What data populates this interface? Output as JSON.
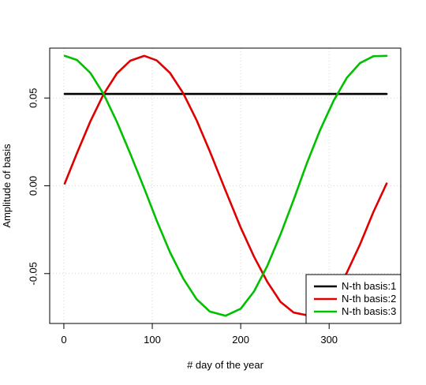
{
  "chart_data": {
    "type": "line",
    "xlabel": "# day of the year",
    "ylabel": "Amplitude of basis",
    "xlim": [
      -16,
      381
    ],
    "ylim": [
      -0.0784,
      0.0784
    ],
    "x_ticks": [
      0,
      100,
      200,
      300
    ],
    "y_ticks": [
      -0.05,
      0.0,
      0.05
    ],
    "x_tick_labels": [
      "0",
      "100",
      "200",
      "300"
    ],
    "y_tick_labels": [
      "-0.05",
      "0.00",
      "0.05"
    ],
    "grid": true,
    "legend_position": "bottom-right",
    "x": [
      1,
      15,
      30,
      45,
      60,
      75,
      91,
      105,
      120,
      135,
      150,
      165,
      183,
      200,
      215,
      230,
      245,
      260,
      275,
      290,
      305,
      320,
      335,
      350,
      365
    ],
    "series": [
      {
        "name": "N-th basis:1",
        "color": "#000000",
        "values": [
          0.0523,
          0.0523,
          0.0523,
          0.0523,
          0.0523,
          0.0523,
          0.0523,
          0.0523,
          0.0523,
          0.0523,
          0.0523,
          0.0523,
          0.0523,
          0.0523,
          0.0523,
          0.0523,
          0.0523,
          0.0523,
          0.0523,
          0.0523,
          0.0523,
          0.0523,
          0.0523,
          0.0523,
          0.0523
        ]
      },
      {
        "name": "N-th basis:2",
        "color": "#DF0000",
        "values": [
          0.0013,
          0.0188,
          0.0367,
          0.0522,
          0.064,
          0.0712,
          0.074,
          0.0714,
          0.0643,
          0.0527,
          0.0375,
          0.0197,
          -0.0029,
          -0.0238,
          -0.0403,
          -0.0546,
          -0.0661,
          -0.0722,
          -0.0737,
          -0.0699,
          -0.0621,
          -0.0495,
          -0.0333,
          -0.015,
          0.0013
        ]
      },
      {
        "name": "N-th basis:3",
        "color": "#00C000",
        "values": [
          0.074,
          0.0716,
          0.0643,
          0.0522,
          0.0364,
          0.0184,
          -0.0016,
          -0.0198,
          -0.0378,
          -0.0528,
          -0.0645,
          -0.0716,
          -0.074,
          -0.07,
          -0.0602,
          -0.0457,
          -0.0277,
          -0.0078,
          0.0131,
          0.032,
          0.0484,
          0.0615,
          0.0699,
          0.0738,
          0.074
        ]
      }
    ]
  }
}
